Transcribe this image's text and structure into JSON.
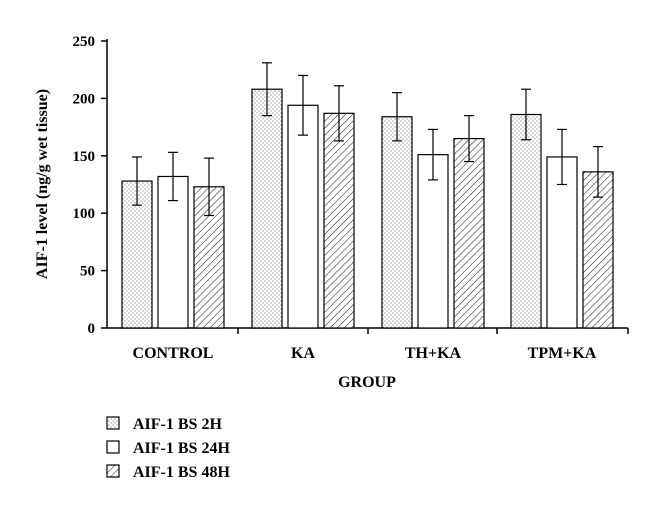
{
  "chart_data": {
    "type": "bar",
    "xlabel": "GROUP",
    "ylabel": "AIF-1 level (ng/g wet tissue)",
    "ylim": [
      0,
      250
    ],
    "yticks": [
      0,
      50,
      100,
      150,
      200,
      250
    ],
    "categories": [
      "CONTROL",
      "KA",
      "TH+KA",
      "TPM+KA"
    ],
    "series": [
      {
        "name": "AIF-1 BS 2H",
        "pattern": "dots",
        "values": [
          128,
          208,
          184,
          186
        ],
        "errors": [
          21,
          23,
          21,
          22
        ]
      },
      {
        "name": "AIF-1 BS 24H",
        "pattern": "none",
        "values": [
          132,
          194,
          151,
          149
        ],
        "errors": [
          21,
          26,
          22,
          24
        ]
      },
      {
        "name": "AIF-1 BS 48H",
        "pattern": "hatch",
        "values": [
          123,
          187,
          165,
          136
        ],
        "errors": [
          25,
          24,
          20,
          22
        ]
      }
    ],
    "grid": false,
    "legend": "bottom-left"
  }
}
